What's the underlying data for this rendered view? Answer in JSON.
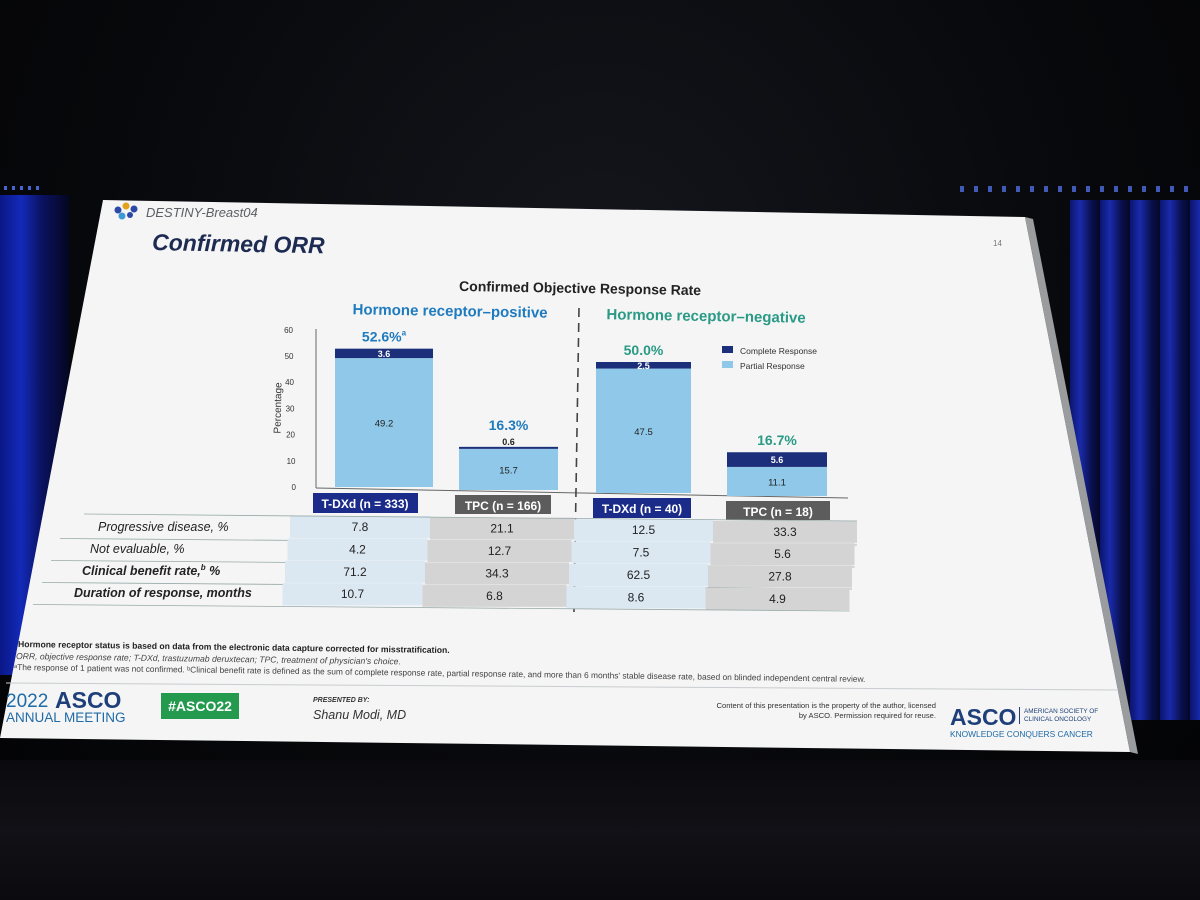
{
  "slide": {
    "study": "DESTINY-Breast04",
    "title": "Confirmed ORR",
    "page_number": "14"
  },
  "chart_data": {
    "type": "bar",
    "title": "Confirmed Objective Response Rate",
    "ylabel": "Percentage",
    "ylim": [
      0,
      60
    ],
    "yticks": [
      0,
      10,
      20,
      30,
      40,
      50,
      60
    ],
    "groups": [
      "Hormone receptor–positive",
      "Hormone receptor–negative"
    ],
    "categories": [
      "T-DXd (n = 333)",
      "TPC (n = 166)",
      "T-DXd (n = 40)",
      "TPC (n = 18)"
    ],
    "series": [
      {
        "name": "Complete Response",
        "values": [
          3.6,
          0.6,
          2.5,
          5.6
        ],
        "labels": [
          "3.6",
          "0.6",
          "2.5",
          "5.6"
        ]
      },
      {
        "name": "Partial Response",
        "values": [
          49.2,
          15.7,
          47.5,
          11.1
        ],
        "labels": [
          "49.2",
          "15.7",
          "47.5",
          "11.1"
        ]
      }
    ],
    "totals": [
      "52.6%",
      "16.3%",
      "50.0%",
      "16.7%"
    ],
    "total_superscripts": [
      "a",
      "",
      "",
      ""
    ],
    "colors": {
      "complete": "#1b2f7a",
      "partial": "#8fc8e8",
      "hr_positive": "#1f7bbf",
      "hr_negative": "#2a9a86",
      "tdxd_label": "#1b2b8a",
      "tpc_label": "#5c5c5c"
    },
    "legend_position": "top-right"
  },
  "table": {
    "rows": [
      {
        "label": "Progressive disease, %",
        "values": [
          "7.8",
          "21.1",
          "12.5",
          "33.3"
        ]
      },
      {
        "label": "Not evaluable, %",
        "values": [
          "4.2",
          "12.7",
          "7.5",
          "5.6"
        ]
      },
      {
        "label": "Clinical benefit rate,",
        "label_sup": "b",
        "label_suffix": " %",
        "values": [
          "71.2",
          "34.3",
          "62.5",
          "27.8"
        ]
      },
      {
        "label": "Duration of response, months",
        "values": [
          "10.7",
          "6.8",
          "8.6",
          "4.9"
        ]
      }
    ]
  },
  "footnotes": {
    "bold_note": "Hormone receptor status is based on data from the electronic data capture corrected for misstratification.",
    "abbrev": "ORR, objective response rate; T-DXd, trastuzumab deruxtecan; TPC, treatment of physician's choice.",
    "note_a": "ᵃThe response of 1 patient was not confirmed. ᵇClinical benefit rate is defined as the sum of complete response rate, partial response rate, and more than 6 months' stable disease rate, based on blinded independent central review."
  },
  "footer": {
    "meeting_year": "2022",
    "meeting_org": "ASCO",
    "meeting_name": "ANNUAL MEETING",
    "hashtag": "#ASCO22",
    "presented_by_label": "PRESENTED BY:",
    "presenter": "Shanu Modi, MD",
    "copyright": "Content of this presentation is the property of the author, licensed by ASCO. Permission required for reuse.",
    "logo_text": "ASCO",
    "logo_org_line1": "AMERICAN SOCIETY OF",
    "logo_org_line2": "CLINICAL ONCOLOGY",
    "logo_tagline": "KNOWLEDGE CONQUERS CANCER"
  }
}
